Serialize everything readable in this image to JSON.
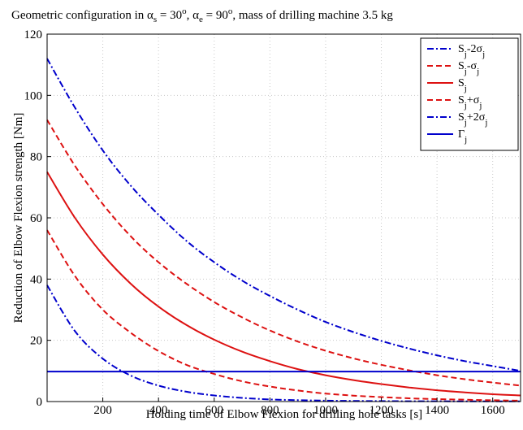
{
  "chart_data": {
    "type": "line",
    "title": "Geometric configuration in α_s = 30°, α_e = 90°, mass of drilling machine 3.5 kg",
    "title_parts": {
      "prefix": "Geometric configuration in α",
      "sub_s": "s",
      "mid1": " = 30",
      "sup1": "o",
      "mid2": ", α",
      "sub_e": "e",
      "mid3": " = 90",
      "sup2": "o",
      "suffix": ", mass of drilling machine 3.5 kg"
    },
    "xlabel": "Holding time of Elbow Flexion for drilling hole tasks [s]",
    "ylabel": "Reduction of Elbow Flexion strength [Nm]",
    "xlim": [
      0,
      1700
    ],
    "ylim": [
      0,
      120
    ],
    "xticks": [
      "200",
      "400",
      "600",
      "800",
      "1000",
      "1200",
      "1400",
      "1600"
    ],
    "yticks": [
      "0",
      "20",
      "40",
      "60",
      "80",
      "100",
      "120"
    ],
    "grid": true,
    "legend_position": "top-right",
    "x": [
      0,
      100,
      200,
      300,
      400,
      500,
      600,
      700,
      800,
      900,
      1000,
      1100,
      1200,
      1300,
      1400,
      1500,
      1600,
      1700
    ],
    "series": [
      {
        "name": "S_j-2σ_j",
        "legend": {
          "base": "S",
          "sub": "j",
          "rest": "-2σ",
          "sub2": "j"
        },
        "color": "#0000cc",
        "style": "dashdot",
        "values": [
          38,
          23,
          14,
          8.5,
          5.2,
          3.2,
          2.0,
          1.2,
          0.7,
          0.45,
          0.3,
          0.2,
          0.15,
          0.1,
          0.1,
          0.05,
          0.05,
          0.05
        ]
      },
      {
        "name": "S_j-σ_j",
        "legend": {
          "base": "S",
          "sub": "j",
          "rest": "-σ",
          "sub2": "j"
        },
        "color": "#dd1111",
        "style": "dashed",
        "values": [
          56,
          41,
          30,
          22.5,
          16.5,
          12,
          9,
          6.6,
          4.9,
          3.6,
          2.6,
          1.95,
          1.45,
          1.05,
          0.8,
          0.6,
          0.42,
          0.3
        ]
      },
      {
        "name": "S_j",
        "legend": {
          "base": "S",
          "sub": "j",
          "rest": "",
          "sub2": ""
        },
        "color": "#dd1111",
        "style": "solid",
        "values": [
          75,
          60,
          48,
          38.5,
          31,
          25,
          20.2,
          16.3,
          13.2,
          10.6,
          8.6,
          7.0,
          5.7,
          4.6,
          3.7,
          3.0,
          2.4,
          2.0
        ]
      },
      {
        "name": "S_j+σ_j",
        "legend": {
          "base": "S",
          "sub": "j",
          "rest": "+σ",
          "sub2": "j"
        },
        "color": "#dd1111",
        "style": "dashed",
        "values": [
          92,
          77,
          64.5,
          54,
          45.5,
          38.5,
          32.5,
          27.5,
          23.2,
          19.6,
          16.6,
          14.1,
          12.0,
          10.2,
          8.6,
          7.3,
          6.2,
          5.2
        ]
      },
      {
        "name": "S_j+2σ_j",
        "legend": {
          "base": "S",
          "sub": "j",
          "rest": "+2σ",
          "sub2": "j"
        },
        "color": "#0000cc",
        "style": "dashdot",
        "values": [
          112,
          96,
          82,
          70.5,
          61,
          52.5,
          45.5,
          39.5,
          34.5,
          30,
          26,
          22.7,
          19.8,
          17.3,
          15.1,
          13.2,
          11.6,
          10.0
        ]
      },
      {
        "name": "Γ_j",
        "legend": {
          "base": "Γ",
          "sub": "j",
          "rest": "",
          "sub2": ""
        },
        "color": "#0000cc",
        "style": "solid",
        "values": [
          9.8,
          9.8,
          9.8,
          9.8,
          9.8,
          9.8,
          9.8,
          9.8,
          9.8,
          9.8,
          9.8,
          9.8,
          9.8,
          9.8,
          9.8,
          9.8,
          9.8,
          9.8
        ]
      }
    ]
  }
}
